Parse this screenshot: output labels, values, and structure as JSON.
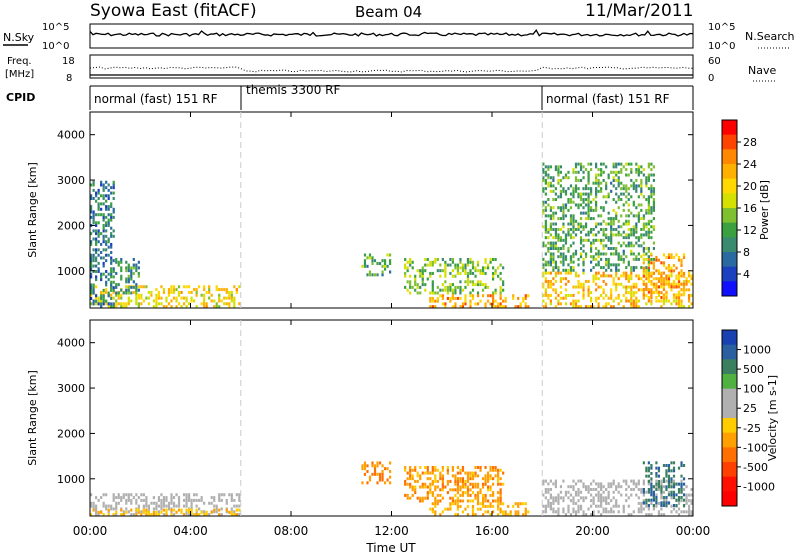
{
  "header": {
    "station": "Syowa East (fitACF)",
    "beam": "Beam 04",
    "date": "11/Mar/2011"
  },
  "noise_panel": {
    "left_label": "N.Sky",
    "right_label": "N.Search",
    "left_ticks": [
      "10^5",
      "10^0"
    ],
    "right_ticks": [
      "10^5",
      "10^0"
    ]
  },
  "freq_panel": {
    "left_label_line1": "Freq.",
    "left_label_line2": "[MHz]",
    "right_label": "Nave",
    "left_ticks": [
      "18",
      "8"
    ],
    "right_ticks": [
      "60",
      "0"
    ]
  },
  "cpid_panel": {
    "label": "CPID",
    "segments": [
      {
        "text": "normal (fast) 151 RF",
        "start_hour": 0,
        "end_hour": 6
      },
      {
        "text": "themis 3300 RF",
        "start_hour": 6,
        "end_hour": 18
      },
      {
        "text": "normal (fast) 151 RF",
        "start_hour": 18,
        "end_hour": 24
      }
    ]
  },
  "x_axis": {
    "label": "Time UT",
    "ticks": [
      "00:00",
      "04:00",
      "08:00",
      "12:00",
      "16:00",
      "20:00",
      "00:00"
    ],
    "range_hours": [
      0,
      24
    ]
  },
  "power_panel": {
    "ylabel": "Slant Range [km]",
    "yticks": [
      "4000",
      "3000",
      "2000",
      "1000"
    ],
    "colorbar_label": "Power [dB]",
    "colorbar_ticks": [
      "28",
      "24",
      "20",
      "16",
      "12",
      "8",
      "4"
    ],
    "colorbar_colors": [
      "#ff0000",
      "#ff4400",
      "#ff8800",
      "#ffb000",
      "#ffd800",
      "#d4e000",
      "#7fc030",
      "#3aa040",
      "#3a8a70",
      "#2a6aa0",
      "#1a40c0",
      "#1010ff"
    ]
  },
  "velocity_panel": {
    "ylabel": "Slant Range [km]",
    "yticks": [
      "4000",
      "3000",
      "2000",
      "1000"
    ],
    "colorbar_label": "Velocity [m s-1]",
    "colorbar_ticks": [
      "1000",
      "500",
      "100",
      "25",
      "-25",
      "-100",
      "-500",
      "-1000"
    ],
    "colorbar_colors": [
      "#1840b0",
      "#2a60a0",
      "#3a8060",
      "#50b040",
      "#b0b0b0",
      "#b0b0b0",
      "#ffcc00",
      "#ffa000",
      "#ff7000",
      "#ff4000",
      "#ff1000",
      "#ff0000"
    ]
  },
  "chart_data": [
    {
      "type": "heatmap",
      "title": "Power",
      "x": {
        "label": "Time UT",
        "range": [
          0,
          24
        ],
        "unit": "hour"
      },
      "y": {
        "label": "Slant Range [km]",
        "range": [
          180,
          4500
        ]
      },
      "colorbar": {
        "label": "Power [dB]",
        "range": [
          0,
          32
        ],
        "ticks": [
          4,
          8,
          12,
          16,
          20,
          24,
          28
        ]
      },
      "regions": [
        {
          "t0": 0.0,
          "t1": 6.0,
          "r0": 200,
          "r1": 700,
          "power": 20
        },
        {
          "t0": 1.0,
          "t1": 2.0,
          "r0": 500,
          "r1": 1300,
          "power": 10
        },
        {
          "t0": 0.0,
          "t1": 1.0,
          "r0": 200,
          "r1": 3000,
          "power": 8
        },
        {
          "t0": 10.8,
          "t1": 12.0,
          "r0": 900,
          "r1": 1400,
          "power": 12
        },
        {
          "t0": 12.5,
          "t1": 16.5,
          "r0": 500,
          "r1": 1300,
          "power": 14
        },
        {
          "t0": 13.5,
          "t1": 17.5,
          "r0": 200,
          "r1": 500,
          "power": 24
        },
        {
          "t0": 18.0,
          "t1": 24.0,
          "r0": 200,
          "r1": 1000,
          "power": 22
        },
        {
          "t0": 22.0,
          "t1": 23.7,
          "r0": 400,
          "r1": 1400,
          "power": 24
        },
        {
          "t0": 18.0,
          "t1": 22.5,
          "r0": 1000,
          "r1": 3400,
          "power": 12
        }
      ]
    },
    {
      "type": "heatmap",
      "title": "Velocity",
      "x": {
        "label": "Time UT",
        "range": [
          0,
          24
        ],
        "unit": "hour"
      },
      "y": {
        "label": "Slant Range [km]",
        "range": [
          180,
          4500
        ]
      },
      "colorbar": {
        "label": "Velocity [m s-1]",
        "range": [
          -1000,
          1000
        ],
        "ticks": [
          -1000,
          -500,
          -100,
          -25,
          25,
          100,
          500,
          1000
        ]
      },
      "regions": [
        {
          "t0": 0.0,
          "t1": 6.0,
          "r0": 200,
          "r1": 700,
          "velocity": 200
        },
        {
          "t0": 0.0,
          "t1": 6.0,
          "r0": 200,
          "r1": 350,
          "velocity": -150
        },
        {
          "t0": 10.8,
          "t1": 12.0,
          "r0": 900,
          "r1": 1400,
          "velocity": -400
        },
        {
          "t0": 12.5,
          "t1": 16.5,
          "r0": 500,
          "r1": 1300,
          "velocity": -300
        },
        {
          "t0": 13.5,
          "t1": 17.5,
          "r0": 200,
          "r1": 500,
          "velocity": -200
        },
        {
          "t0": 18.0,
          "t1": 24.0,
          "r0": 200,
          "r1": 1000,
          "velocity": 150
        },
        {
          "t0": 22.0,
          "t1": 23.7,
          "r0": 400,
          "r1": 1400,
          "velocity": 700
        }
      ]
    }
  ]
}
